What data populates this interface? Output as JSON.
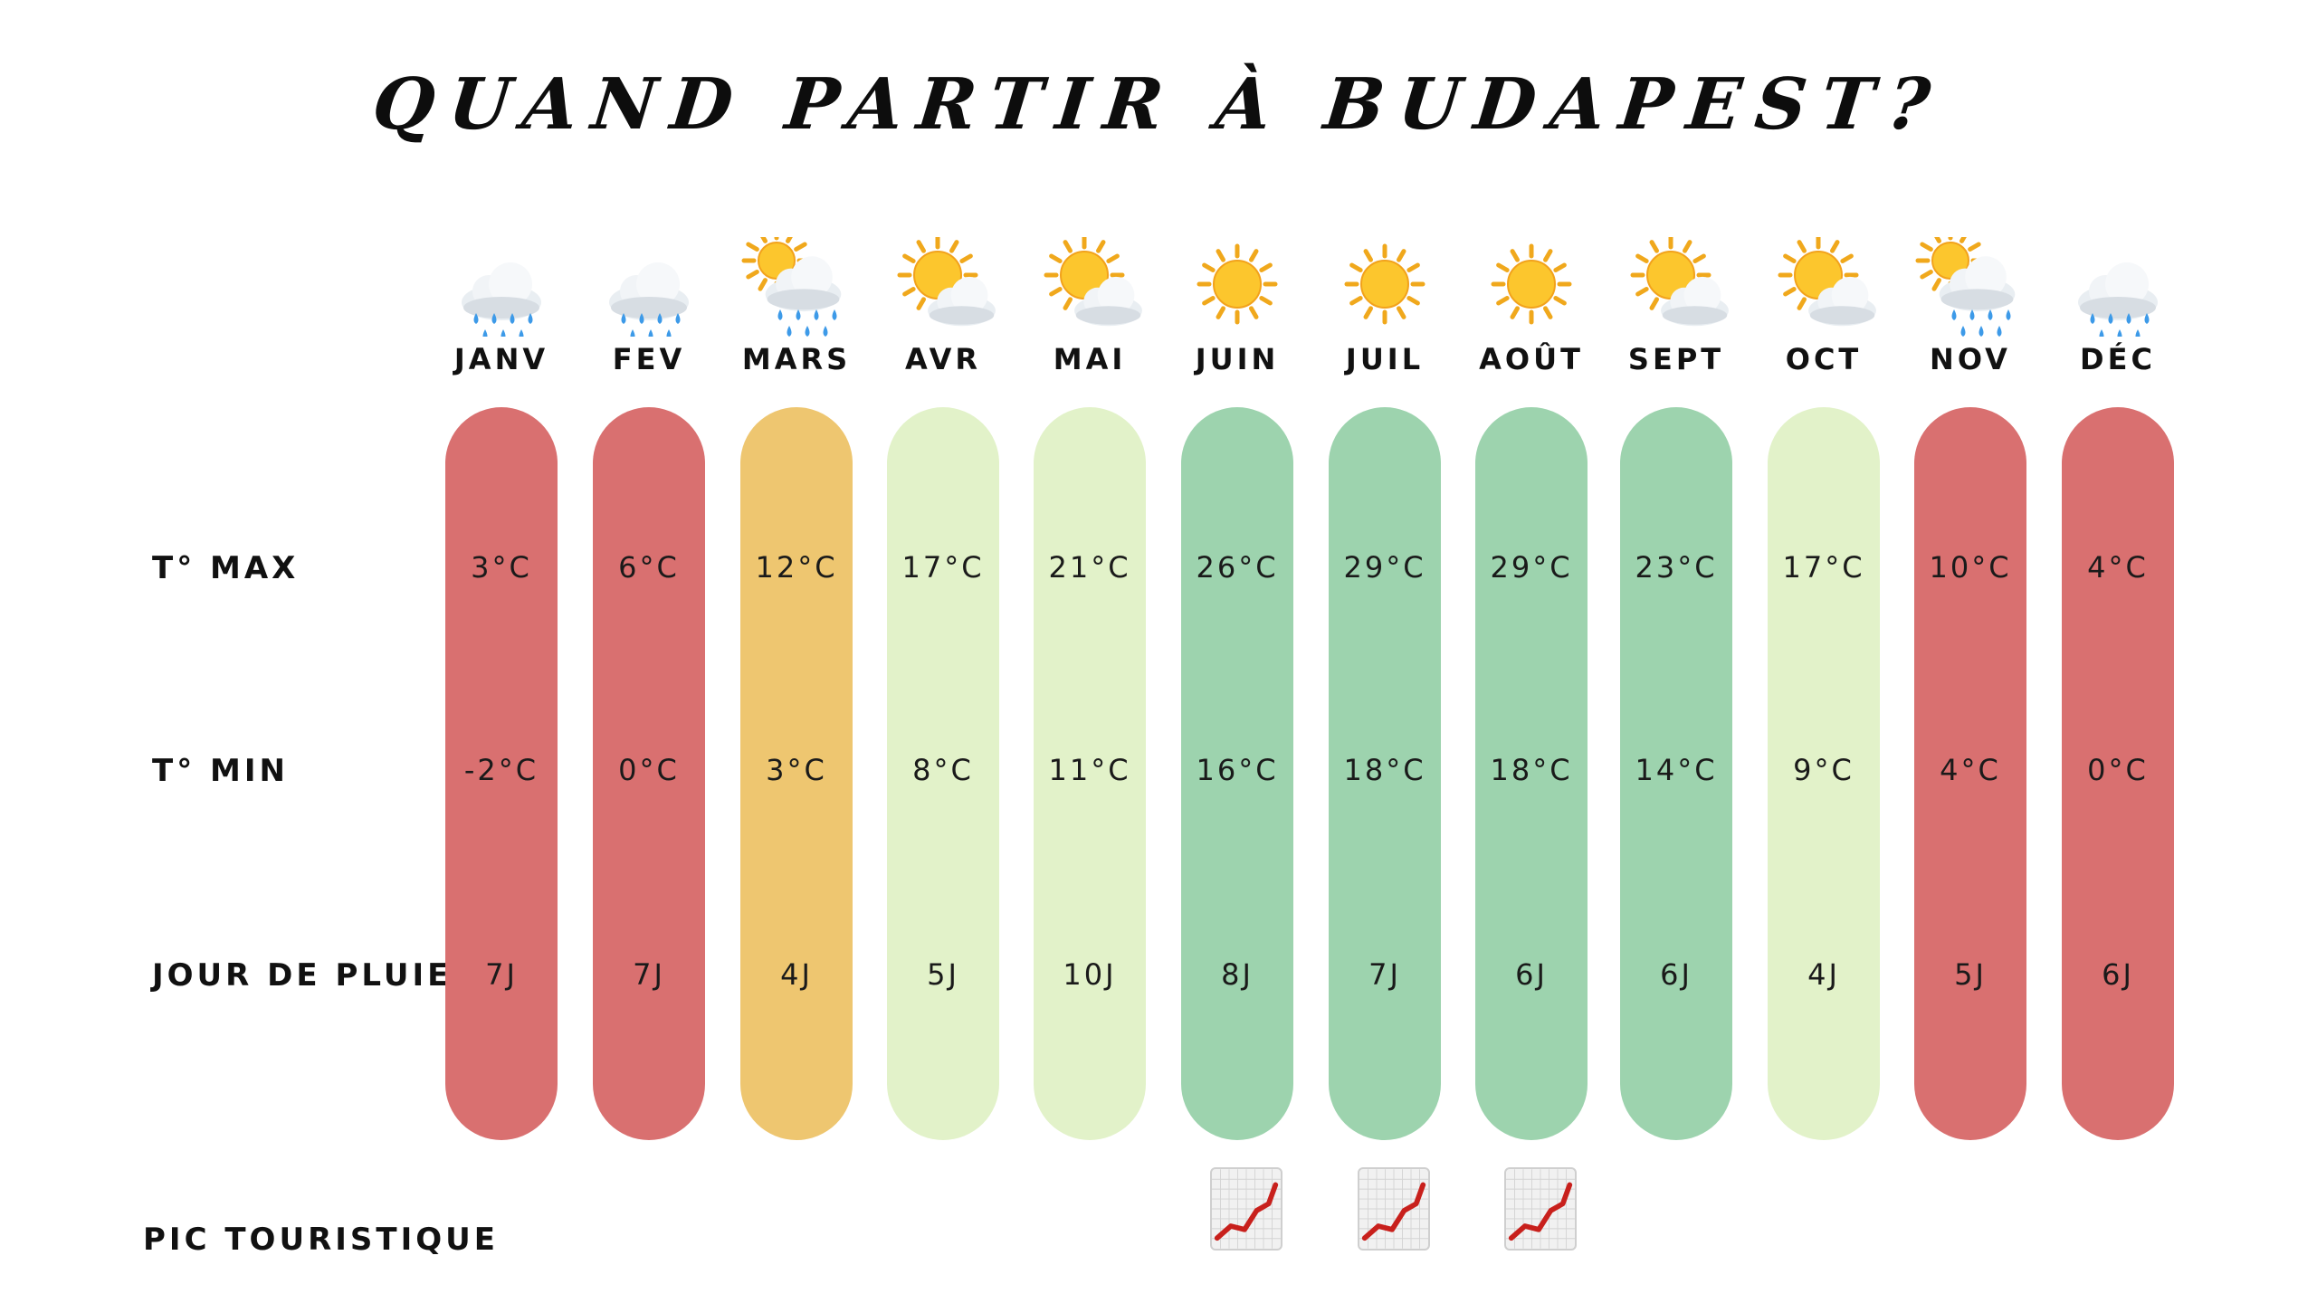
{
  "title": "QUAND PARTIR À BUDAPEST?",
  "labels": {
    "tmax": "T° MAX",
    "tmin": "T° MIN",
    "rain": "JOUR DE PLUIE",
    "peak": "PIC TOURISTIQUE"
  },
  "colors": {
    "red": "#d97070",
    "orange": "#eec670",
    "light_green": "#e2f2c9",
    "green": "#9dd3ae"
  },
  "months": [
    {
      "name": "JANV",
      "tmax": "3°C",
      "tmin": "-2°C",
      "rain": "7J",
      "color": "red",
      "icon": "rain-cloud-icon",
      "peak": false
    },
    {
      "name": "FEV",
      "tmax": "6°C",
      "tmin": "0°C",
      "rain": "7J",
      "color": "red",
      "icon": "rain-cloud-icon",
      "peak": false
    },
    {
      "name": "MARS",
      "tmax": "12°C",
      "tmin": "3°C",
      "rain": "4J",
      "color": "orange",
      "icon": "sun-behind-rain-cloud-icon",
      "peak": false
    },
    {
      "name": "AVR",
      "tmax": "17°C",
      "tmin": "8°C",
      "rain": "5J",
      "color": "light_green",
      "icon": "sun-behind-cloud-icon",
      "peak": false
    },
    {
      "name": "MAI",
      "tmax": "21°C",
      "tmin": "11°C",
      "rain": "10J",
      "color": "light_green",
      "icon": "sun-behind-cloud-icon",
      "peak": false
    },
    {
      "name": "JUIN",
      "tmax": "26°C",
      "tmin": "16°C",
      "rain": "8J",
      "color": "green",
      "icon": "sun-icon",
      "peak": true
    },
    {
      "name": "JUIL",
      "tmax": "29°C",
      "tmin": "18°C",
      "rain": "7J",
      "color": "green",
      "icon": "sun-icon",
      "peak": true
    },
    {
      "name": "AOÛT",
      "tmax": "29°C",
      "tmin": "18°C",
      "rain": "6J",
      "color": "green",
      "icon": "sun-icon",
      "peak": true
    },
    {
      "name": "SEPT",
      "tmax": "23°C",
      "tmin": "14°C",
      "rain": "6J",
      "color": "green",
      "icon": "sun-behind-cloud-icon",
      "peak": false
    },
    {
      "name": "OCT",
      "tmax": "17°C",
      "tmin": "9°C",
      "rain": "4J",
      "color": "light_green",
      "icon": "sun-behind-cloud-icon",
      "peak": false
    },
    {
      "name": "NOV",
      "tmax": "10°C",
      "tmin": "4°C",
      "rain": "5J",
      "color": "red",
      "icon": "sun-behind-rain-cloud-icon",
      "peak": false
    },
    {
      "name": "DÉC",
      "tmax": "4°C",
      "tmin": "0°C",
      "rain": "6J",
      "color": "red",
      "icon": "rain-cloud-icon",
      "peak": false
    }
  ]
}
